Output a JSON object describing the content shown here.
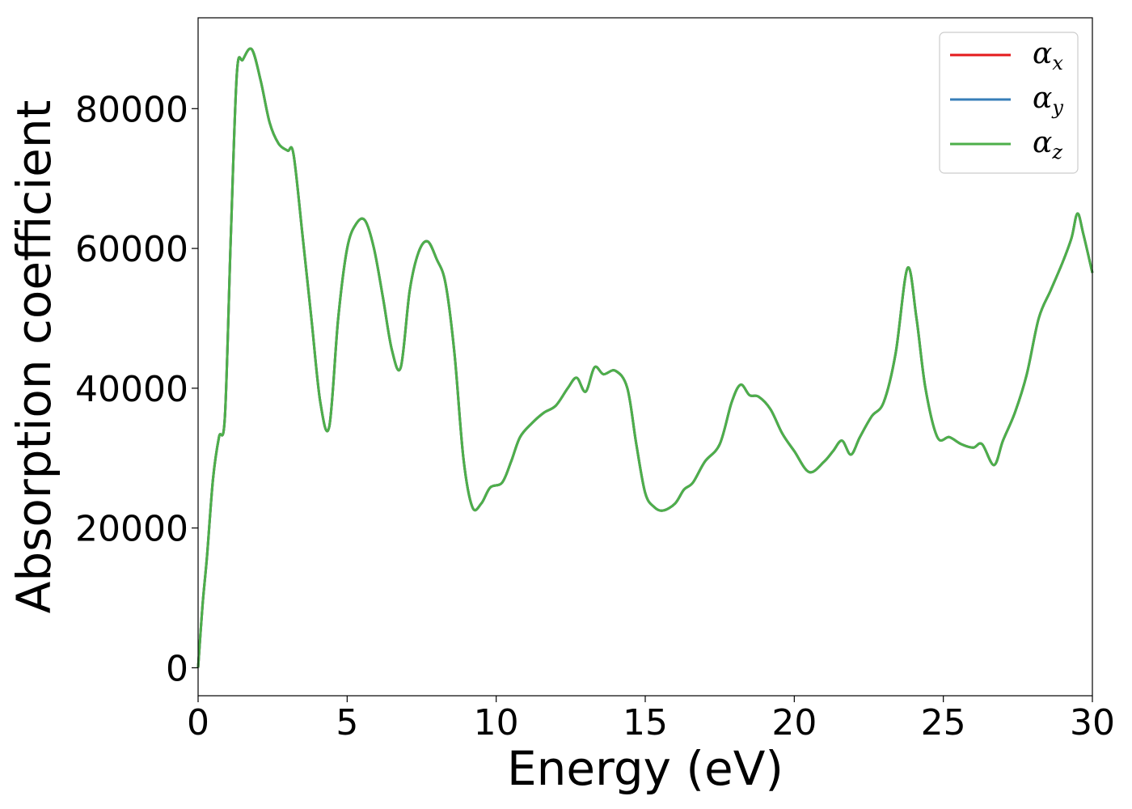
{
  "chart_data": {
    "type": "line",
    "title": "",
    "xlabel": "Energy (eV)",
    "ylabel": "Absorption coefficient",
    "xlim": [
      0,
      30
    ],
    "ylim": [
      -4000,
      93000
    ],
    "xticks": [
      0,
      5,
      10,
      15,
      20,
      25,
      30
    ],
    "yticks": [
      0,
      20000,
      40000,
      60000,
      80000
    ],
    "xtick_labels": [
      "0",
      "5",
      "10",
      "15",
      "20",
      "25",
      "30"
    ],
    "ytick_labels": [
      "0",
      "20000",
      "40000",
      "60000",
      "80000"
    ],
    "grid": false,
    "legend_position": "top-right",
    "x": [
      0,
      0.15,
      0.3,
      0.5,
      0.7,
      0.9,
      1.1,
      1.3,
      1.5,
      1.8,
      2.1,
      2.4,
      2.7,
      3.0,
      3.2,
      3.5,
      3.8,
      4.1,
      4.4,
      4.7,
      5.0,
      5.3,
      5.6,
      5.9,
      6.2,
      6.5,
      6.8,
      7.1,
      7.4,
      7.7,
      8.0,
      8.3,
      8.6,
      8.9,
      9.2,
      9.5,
      9.8,
      10.2,
      10.5,
      10.8,
      11.2,
      11.6,
      12.0,
      12.4,
      12.7,
      13.0,
      13.3,
      13.6,
      14.0,
      14.4,
      14.7,
      15.0,
      15.3,
      15.6,
      16.0,
      16.3,
      16.6,
      17.0,
      17.5,
      17.9,
      18.2,
      18.5,
      18.8,
      19.2,
      19.6,
      20.0,
      20.5,
      21.0,
      21.3,
      21.6,
      21.9,
      22.2,
      22.6,
      23.0,
      23.4,
      23.8,
      24.1,
      24.4,
      24.8,
      25.2,
      25.6,
      26.0,
      26.3,
      26.7,
      27.0,
      27.4,
      27.8,
      28.2,
      28.6,
      29.0,
      29.3,
      29.5,
      29.7,
      30.0
    ],
    "series": [
      {
        "name": "α_x",
        "color": "#e41a1c",
        "values": [
          0,
          9000,
          16000,
          27000,
          33000,
          36000,
          62000,
          85000,
          87000,
          88500,
          84000,
          78000,
          75000,
          74000,
          73500,
          62000,
          50000,
          38000,
          34500,
          50000,
          60000,
          63500,
          64000,
          60000,
          53000,
          45500,
          43000,
          54000,
          59500,
          61000,
          58500,
          55000,
          45000,
          30000,
          23000,
          23500,
          25800,
          26500,
          29500,
          33000,
          35000,
          36500,
          37500,
          40000,
          41500,
          39500,
          43000,
          42000,
          42500,
          40000,
          32000,
          25000,
          23000,
          22500,
          23500,
          25500,
          26500,
          29500,
          32000,
          38000,
          40500,
          39000,
          38800,
          37000,
          33500,
          31000,
          28000,
          29500,
          31000,
          32500,
          30500,
          33000,
          36000,
          38000,
          45000,
          57200,
          50000,
          40000,
          33000,
          33000,
          32000,
          31500,
          32000,
          29000,
          32500,
          36500,
          42000,
          50000,
          54000,
          58000,
          61500,
          65000,
          62000,
          56500
        ]
      },
      {
        "name": "α_y",
        "color": "#377eb8",
        "values": [
          0,
          9000,
          16000,
          27000,
          33000,
          36000,
          62000,
          85000,
          87000,
          88500,
          84000,
          78000,
          75000,
          74000,
          73500,
          62000,
          50000,
          38000,
          34500,
          50000,
          60000,
          63500,
          64000,
          60000,
          53000,
          45500,
          43000,
          54000,
          59500,
          61000,
          58500,
          55000,
          45000,
          30000,
          23000,
          23500,
          25800,
          26500,
          29500,
          33000,
          35000,
          36500,
          37500,
          40000,
          41500,
          39500,
          43000,
          42000,
          42500,
          40000,
          32000,
          25000,
          23000,
          22500,
          23500,
          25500,
          26500,
          29500,
          32000,
          38000,
          40500,
          39000,
          38800,
          37000,
          33500,
          31000,
          28000,
          29500,
          31000,
          32500,
          30500,
          33000,
          36000,
          38000,
          45000,
          57200,
          50000,
          40000,
          33000,
          33000,
          32000,
          31500,
          32000,
          29000,
          32500,
          36500,
          42000,
          50000,
          54000,
          58000,
          61500,
          65000,
          62000,
          56500
        ]
      },
      {
        "name": "α_z",
        "color": "#4daf4a",
        "values": [
          0,
          9000,
          16000,
          27000,
          33000,
          36000,
          62000,
          85000,
          87000,
          88500,
          84000,
          78000,
          75000,
          74000,
          73500,
          62000,
          50000,
          38000,
          34500,
          50000,
          60000,
          63500,
          64000,
          60000,
          53000,
          45500,
          43000,
          54000,
          59500,
          61000,
          58500,
          55000,
          45000,
          30000,
          23000,
          23500,
          25800,
          26500,
          29500,
          33000,
          35000,
          36500,
          37500,
          40000,
          41500,
          39500,
          43000,
          42000,
          42500,
          40000,
          32000,
          25000,
          23000,
          22500,
          23500,
          25500,
          26500,
          29500,
          32000,
          38000,
          40500,
          39000,
          38800,
          37000,
          33500,
          31000,
          28000,
          29500,
          31000,
          32500,
          30500,
          33000,
          36000,
          38000,
          45000,
          57200,
          50000,
          40000,
          33000,
          33000,
          32000,
          31500,
          32000,
          29000,
          32500,
          36500,
          42000,
          50000,
          54000,
          58000,
          61500,
          65000,
          62000,
          56500
        ]
      }
    ]
  },
  "legend": {
    "entries": [
      {
        "symbol": "α",
        "subscript": "x",
        "color": "#e41a1c"
      },
      {
        "symbol": "α",
        "subscript": "y",
        "color": "#377eb8"
      },
      {
        "symbol": "α",
        "subscript": "z",
        "color": "#4daf4a"
      }
    ]
  }
}
